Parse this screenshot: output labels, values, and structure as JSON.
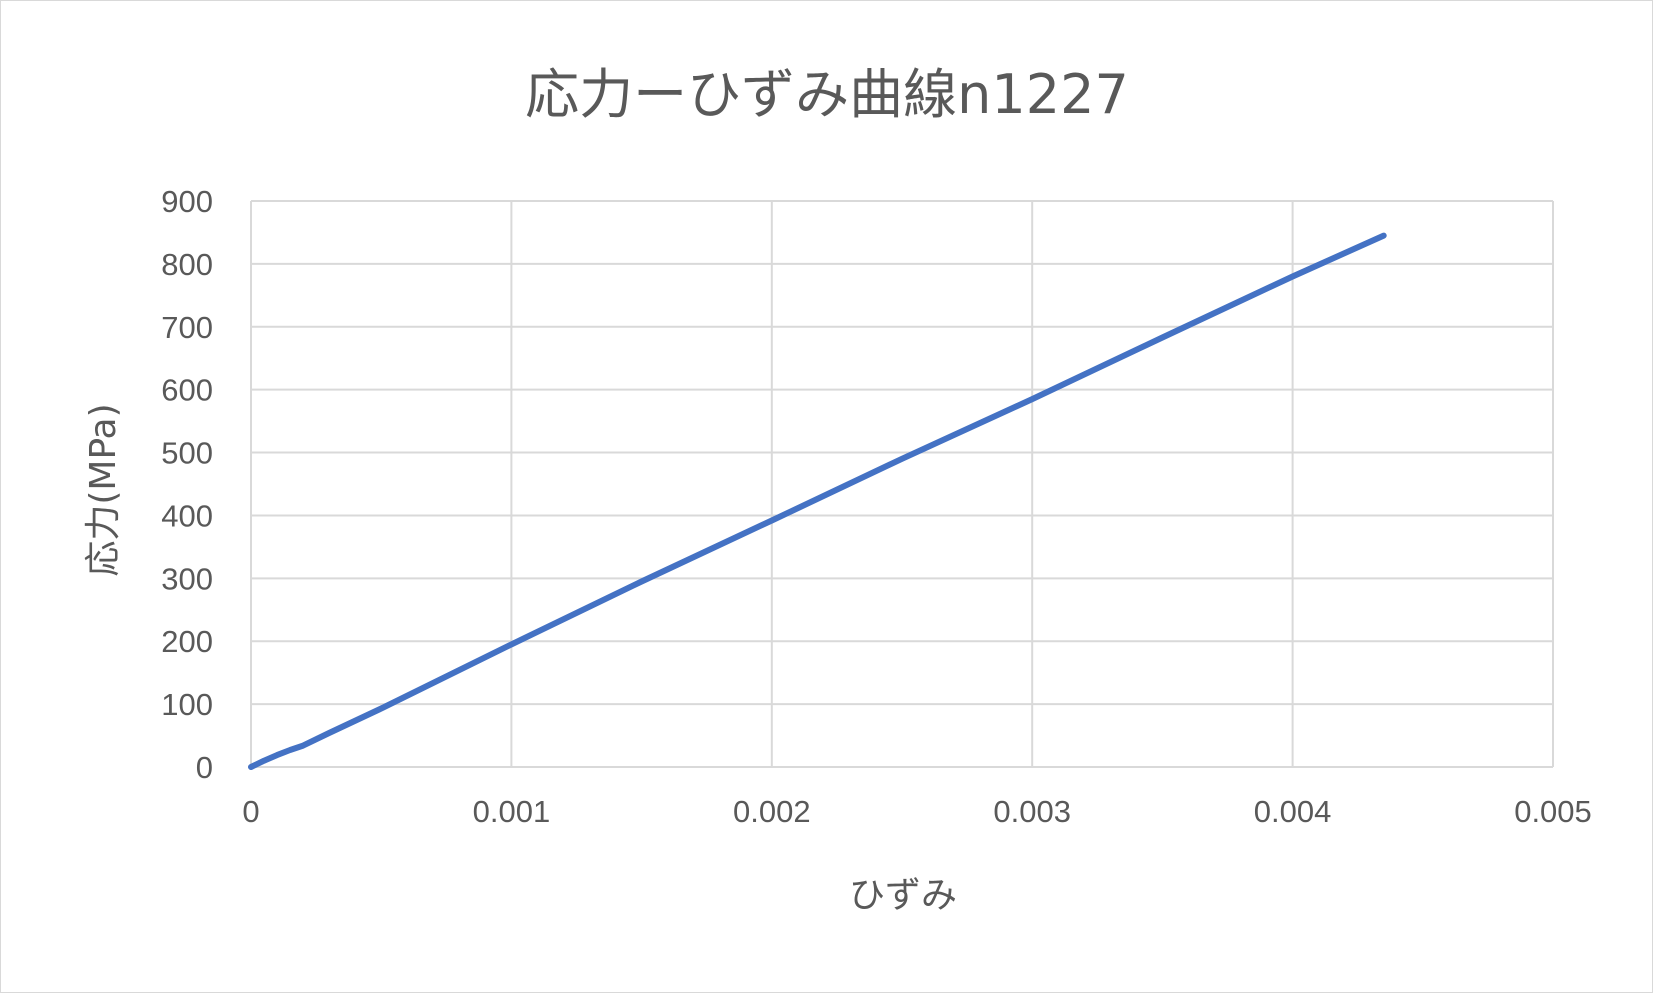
{
  "chart_data": {
    "type": "line",
    "title": "応力ーひずみ曲線n1227",
    "xlabel": "ひずみ",
    "ylabel": "応力(MPa)",
    "xlim": [
      0,
      0.005
    ],
    "ylim": [
      0,
      900
    ],
    "x_ticks": [
      "0",
      "0.001",
      "0.002",
      "0.003",
      "0.004",
      "0.005"
    ],
    "y_ticks": [
      "0",
      "100",
      "200",
      "300",
      "400",
      "500",
      "600",
      "700",
      "800",
      "900"
    ],
    "grid": true,
    "legend": "none",
    "series": [
      {
        "color": "#4472C4",
        "x": [
          0,
          5e-05,
          0.0001,
          0.00015,
          0.0002,
          0.0003,
          0.0005,
          0.001,
          0.0015,
          0.002,
          0.0025,
          0.003,
          0.0035,
          0.004,
          0.00435
        ],
        "y": [
          0,
          10,
          19,
          27,
          34,
          54,
          93,
          195,
          295,
          392,
          490,
          585,
          683,
          780,
          845
        ]
      }
    ]
  }
}
